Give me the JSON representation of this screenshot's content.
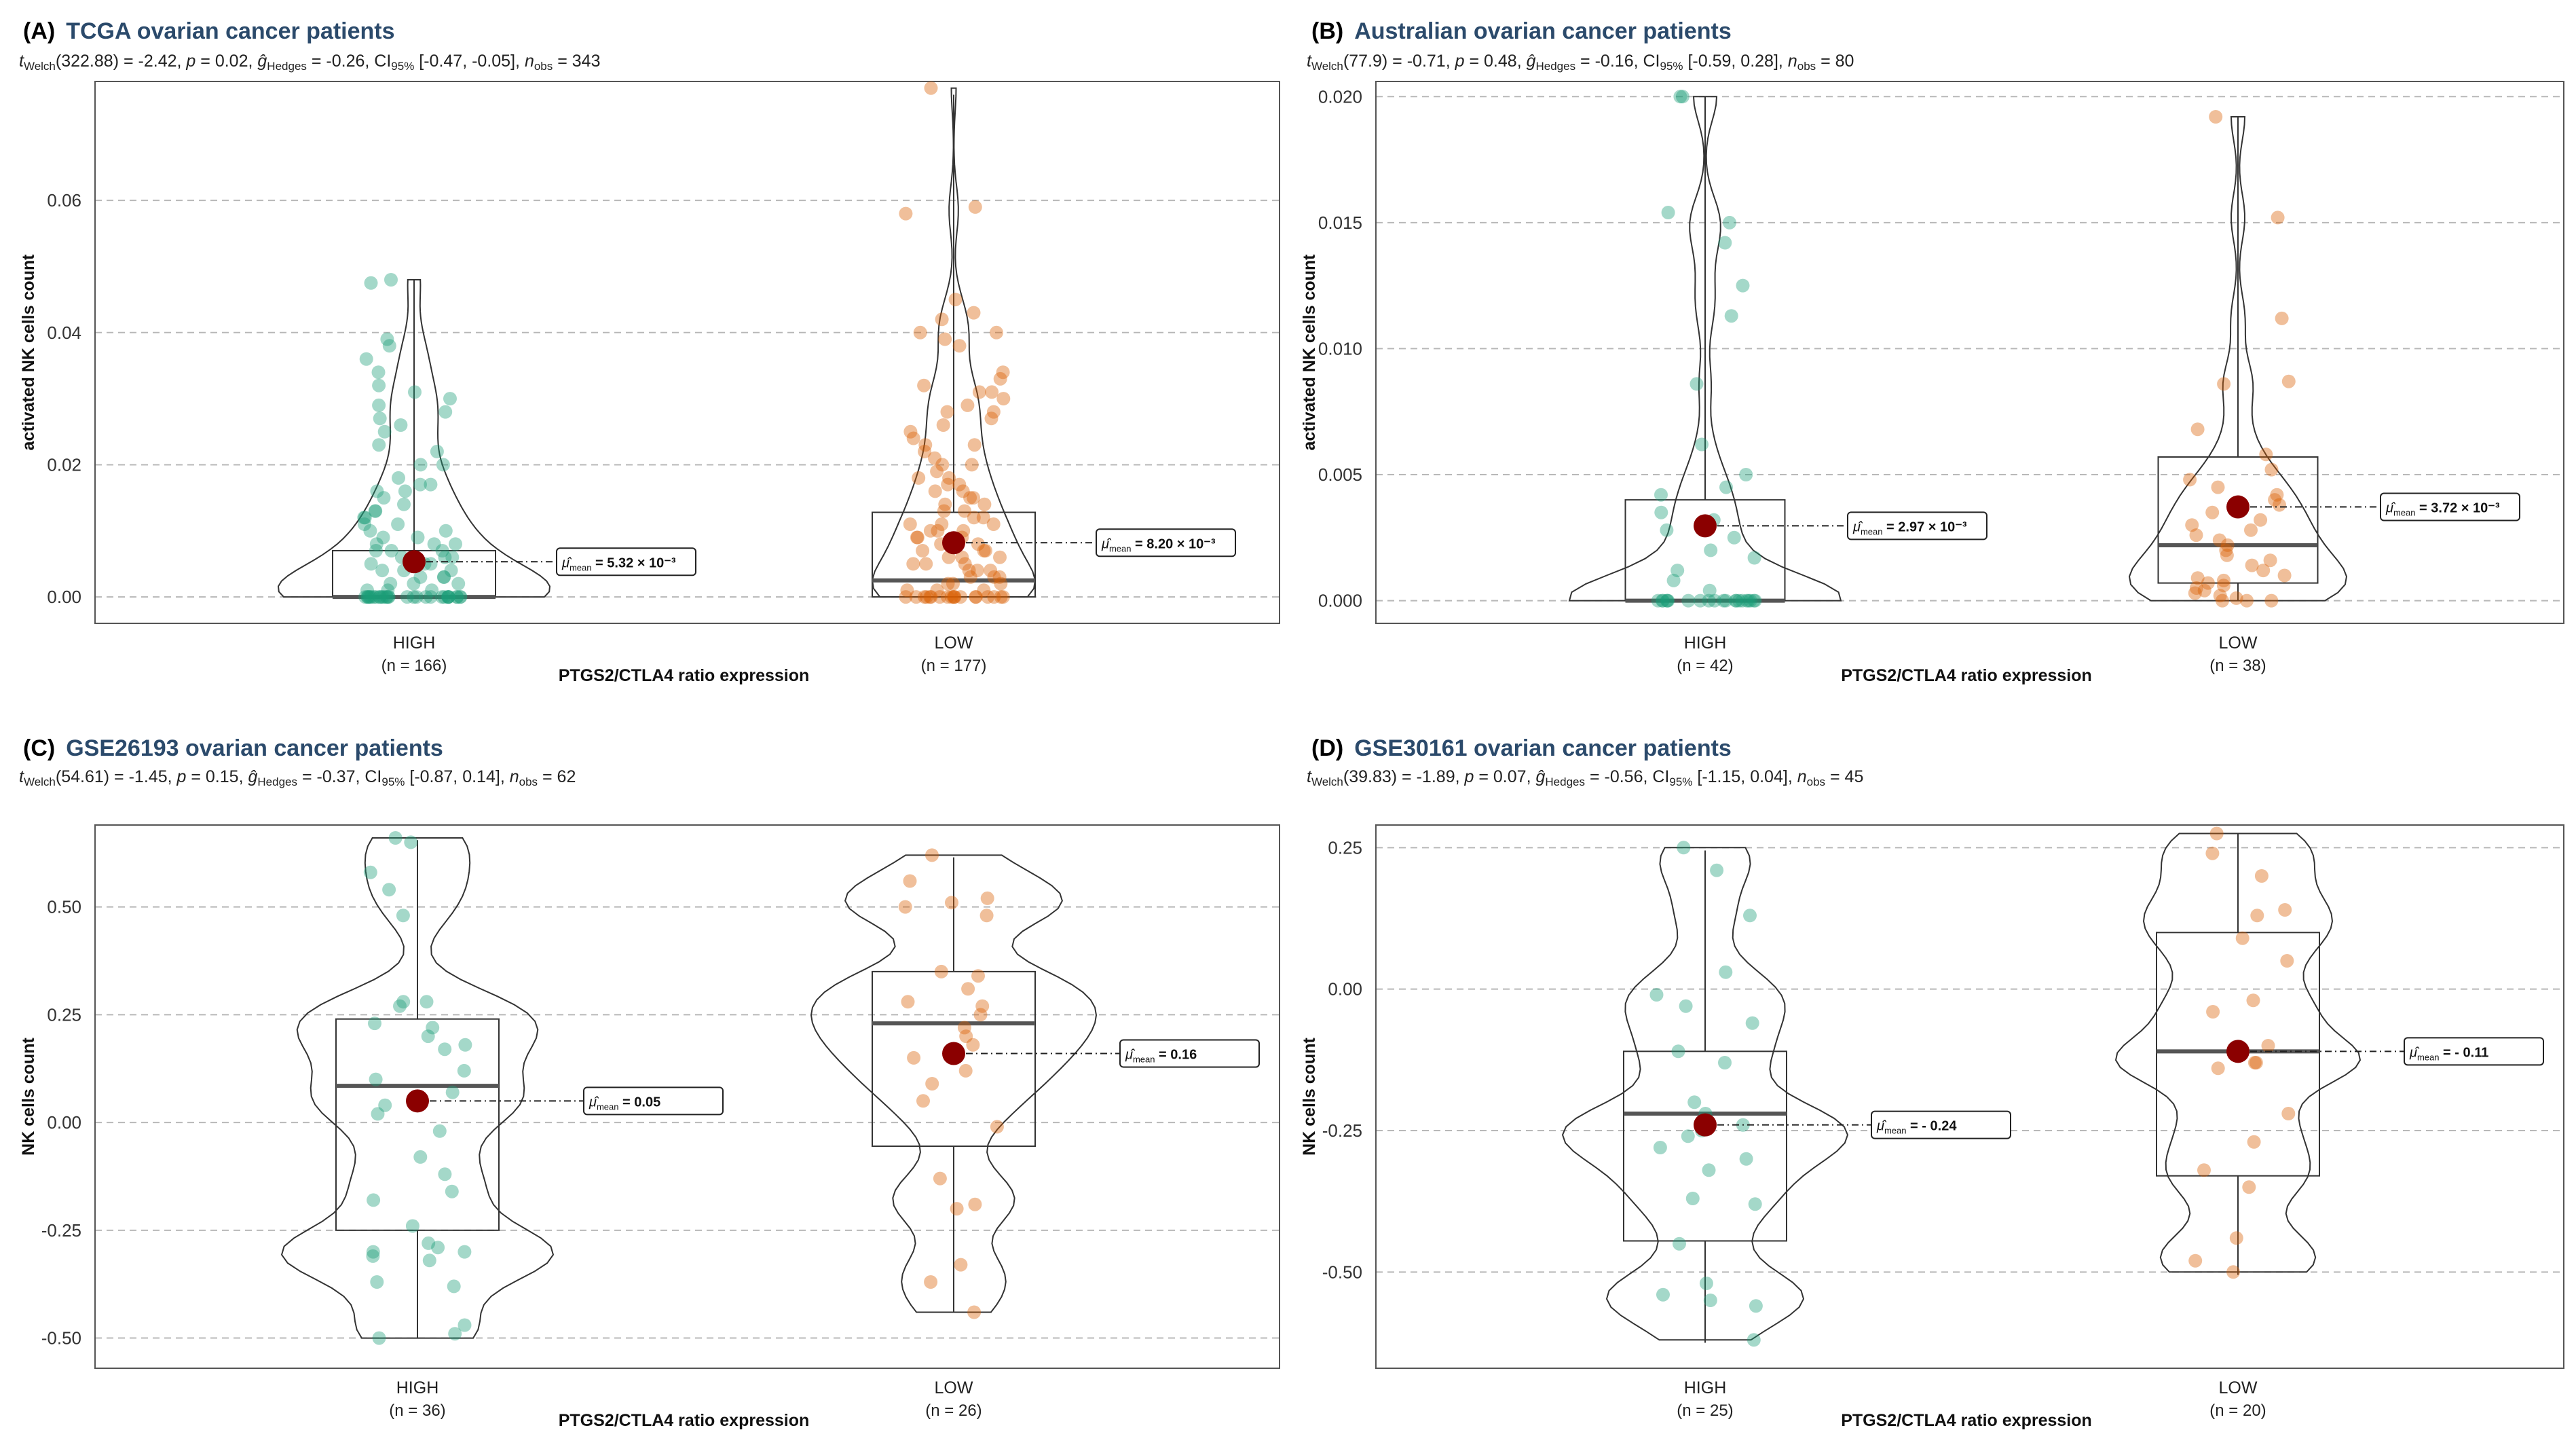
{
  "figure": {
    "group_labels": [
      "HIGH",
      "LOW"
    ],
    "group_colors": [
      "#1b9e77",
      "#d95f02"
    ],
    "mean_marker_color": "#8b0000"
  },
  "chart_data": [
    {
      "panel": "(A)",
      "type": "violin-box-scatter",
      "title": "TCGA ovarian cancer patients",
      "stat": {
        "t_welch_df": "322.88",
        "t": "-2.42",
        "p": "0.02",
        "g_hedges": "-0.26",
        "ci": "[-0.47, -0.05]",
        "n_obs": "343"
      },
      "ylabel": "activated NK cells count",
      "xlabel": "PTGS2/CTLA4 ratio expression",
      "ylim": [
        -0.004,
        0.078
      ],
      "yticks": [
        0.0,
        0.02,
        0.04,
        0.06
      ],
      "ytick_labels": [
        "0.00",
        "0.02",
        "0.04",
        "0.06"
      ],
      "groups": [
        {
          "label": "HIGH",
          "n_label": "(n = 166)",
          "color": "#1b9e77",
          "box": {
            "min": 0.0,
            "q1": 0.0,
            "median": 0.0,
            "q3": 0.007,
            "max": 0.048
          },
          "mean": 0.00532,
          "mean_label": "5.32 × 10⁻³",
          "points": [
            0.048,
            0.0475,
            0.039,
            0.038,
            0.036,
            0.034,
            0.032,
            0.031,
            0.03,
            0.029,
            0.028,
            0.027,
            0.026,
            0.025,
            0.023,
            0.022,
            0.02,
            0.02,
            0.018,
            0.017,
            0.017,
            0.016,
            0.016,
            0.015,
            0.014,
            0.013,
            0.013,
            0.012,
            0.012,
            0.011,
            0.011,
            0.01,
            0.01,
            0.009,
            0.009,
            0.008,
            0.008,
            0.008,
            0.007,
            0.007,
            0.007,
            0.006,
            0.006,
            0.006,
            0.005,
            0.005,
            0.005,
            0.004,
            0.004,
            0.004,
            0.003,
            0.003,
            0.003,
            0.002,
            0.002,
            0.002,
            0.001,
            0.001,
            0.001,
            0.0,
            0.0,
            0.0,
            0.0,
            0.0,
            0.0,
            0.0,
            0.0,
            0.0,
            0.0,
            0.0,
            0.0,
            0.0,
            0.0,
            0.0,
            0.0,
            0.0,
            0.0,
            0.0,
            0.0,
            0.0,
            0.0,
            0.0,
            0.0,
            0.0,
            0.0,
            0.0,
            0.0,
            0.0,
            0.0,
            0.0
          ]
        },
        {
          "label": "LOW",
          "n_label": "(n = 177)",
          "color": "#d95f02",
          "box": {
            "min": 0.0,
            "q1": 0.0,
            "median": 0.0025,
            "q3": 0.0128,
            "max": 0.076
          },
          "mean": 0.0082,
          "mean_label": "8.20 × 10⁻³",
          "points": [
            0.077,
            0.059,
            0.058,
            0.045,
            0.043,
            0.042,
            0.04,
            0.04,
            0.039,
            0.038,
            0.034,
            0.033,
            0.032,
            0.031,
            0.031,
            0.03,
            0.029,
            0.028,
            0.028,
            0.027,
            0.026,
            0.025,
            0.024,
            0.023,
            0.023,
            0.022,
            0.021,
            0.02,
            0.02,
            0.019,
            0.018,
            0.018,
            0.017,
            0.017,
            0.016,
            0.016,
            0.015,
            0.015,
            0.014,
            0.014,
            0.013,
            0.013,
            0.012,
            0.012,
            0.011,
            0.011,
            0.011,
            0.01,
            0.01,
            0.01,
            0.009,
            0.009,
            0.009,
            0.008,
            0.008,
            0.008,
            0.007,
            0.007,
            0.007,
            0.006,
            0.006,
            0.006,
            0.005,
            0.005,
            0.005,
            0.004,
            0.004,
            0.004,
            0.003,
            0.003,
            0.003,
            0.002,
            0.002,
            0.002,
            0.001,
            0.001,
            0.001,
            0.0,
            0.0,
            0.0,
            0.0,
            0.0,
            0.0,
            0.0,
            0.0,
            0.0,
            0.0,
            0.0,
            0.0,
            0.0,
            0.0,
            0.0,
            0.0,
            0.0,
            0.0,
            0.0
          ]
        }
      ]
    },
    {
      "panel": "(B)",
      "type": "violin-box-scatter",
      "title": "Australian ovarian cancer patients",
      "stat": {
        "t_welch_df": "77.9",
        "t": "-0.71",
        "p": "0.48",
        "g_hedges": "-0.16",
        "ci": "[-0.59, 0.28]",
        "n_obs": "80"
      },
      "ylabel": "activated NK cells count",
      "xlabel": "PTGS2/CTLA4 ratio expression",
      "ylim": [
        -0.0009,
        0.0206
      ],
      "yticks": [
        0.0,
        0.005,
        0.01,
        0.015,
        0.02
      ],
      "ytick_labels": [
        "0.000",
        "0.005",
        "0.010",
        "0.015",
        "0.020"
      ],
      "groups": [
        {
          "label": "HIGH",
          "n_label": "(n = 42)",
          "color": "#1b9e77",
          "box": {
            "min": 0.0,
            "q1": 0.0,
            "median": 0.0,
            "q3": 0.004,
            "max": 0.02
          },
          "mean": 0.00297,
          "mean_label": "2.97 × 10⁻³",
          "points": [
            0.02,
            0.02,
            0.0154,
            0.015,
            0.0142,
            0.0125,
            0.0113,
            0.0086,
            0.0062,
            0.005,
            0.0045,
            0.0042,
            0.0035,
            0.0032,
            0.0028,
            0.0025,
            0.002,
            0.0017,
            0.0012,
            0.0008,
            0.0004,
            0.0,
            0.0,
            0.0,
            0.0,
            0.0,
            0.0,
            0.0,
            0.0,
            0.0,
            0.0,
            0.0,
            0.0,
            0.0,
            0.0,
            0.0,
            0.0,
            0.0,
            0.0,
            0.0,
            0.0,
            0.0
          ]
        },
        {
          "label": "LOW",
          "n_label": "(n = 38)",
          "color": "#d95f02",
          "box": {
            "min": 0.0,
            "q1": 0.0007,
            "median": 0.0022,
            "q3": 0.0057,
            "max": 0.0192
          },
          "mean": 0.00372,
          "mean_label": "3.72 × 10⁻³",
          "points": [
            0.0192,
            0.0152,
            0.0112,
            0.0087,
            0.0086,
            0.0068,
            0.0058,
            0.0052,
            0.0048,
            0.0045,
            0.0042,
            0.004,
            0.0038,
            0.0035,
            0.0032,
            0.003,
            0.0028,
            0.0026,
            0.0024,
            0.0022,
            0.002,
            0.0018,
            0.0016,
            0.0014,
            0.0012,
            0.001,
            0.0009,
            0.0008,
            0.0007,
            0.0006,
            0.0005,
            0.0004,
            0.0003,
            0.0002,
            0.0001,
            0.0,
            0.0,
            0.0
          ]
        }
      ]
    },
    {
      "panel": "(C)",
      "type": "violin-box-scatter",
      "title": "GSE26193 ovarian cancer patients",
      "stat": {
        "t_welch_df": "54.61",
        "t": "-1.45",
        "p": "0.15",
        "g_hedges": "-0.37",
        "ci": "[-0.87, 0.14]",
        "n_obs": "62"
      },
      "ylabel": "NK cells count",
      "xlabel": "PTGS2/CTLA4 ratio expression",
      "ylim": [
        -0.57,
        0.69
      ],
      "yticks": [
        -0.5,
        -0.25,
        0.0,
        0.25,
        0.5
      ],
      "ytick_labels": [
        "-0.50",
        "-0.25",
        "0.00",
        "0.25",
        "0.50"
      ],
      "groups": [
        {
          "label": "HIGH",
          "n_label": "(n = 36)",
          "color": "#1b9e77",
          "box": {
            "min": -0.5,
            "q1": -0.25,
            "median": 0.085,
            "q3": 0.24,
            "max": 0.655
          },
          "mean": 0.05,
          "mean_label": "0.05",
          "points": [
            0.66,
            0.65,
            0.58,
            0.54,
            0.48,
            0.28,
            0.28,
            0.27,
            0.23,
            0.22,
            0.2,
            0.18,
            0.17,
            0.12,
            0.1,
            0.07,
            0.05,
            0.04,
            0.02,
            -0.02,
            -0.08,
            -0.12,
            -0.16,
            -0.18,
            -0.24,
            -0.28,
            -0.29,
            -0.3,
            -0.3,
            -0.31,
            -0.32,
            -0.37,
            -0.38,
            -0.47,
            -0.49,
            -0.5
          ]
        },
        {
          "label": "LOW",
          "n_label": "(n = 26)",
          "color": "#d95f02",
          "box": {
            "min": -0.44,
            "q1": -0.055,
            "median": 0.23,
            "q3": 0.35,
            "max": 0.615
          },
          "mean": 0.16,
          "mean_label": "0.16",
          "points": [
            0.62,
            0.56,
            0.52,
            0.51,
            0.5,
            0.48,
            0.35,
            0.34,
            0.31,
            0.28,
            0.27,
            0.25,
            0.22,
            0.2,
            0.18,
            0.15,
            0.12,
            0.09,
            0.05,
            -0.01,
            -0.13,
            -0.19,
            -0.2,
            -0.33,
            -0.37,
            -0.44
          ]
        }
      ]
    },
    {
      "panel": "(D)",
      "type": "violin-box-scatter",
      "title": "GSE30161 ovarian cancer patients",
      "stat": {
        "t_welch_df": "39.83",
        "t": "-1.89",
        "p": "0.07",
        "g_hedges": "-0.56",
        "ci": "[-1.15, 0.04]",
        "n_obs": "45"
      },
      "ylabel": "NK cells count",
      "xlabel": "PTGS2/CTLA4 ratio expression",
      "ylim": [
        -0.67,
        0.29
      ],
      "yticks": [
        -0.5,
        -0.25,
        0.0,
        0.25
      ],
      "ytick_labels": [
        "-0.50",
        "-0.25",
        "0.00",
        "0.25"
      ],
      "groups": [
        {
          "label": "HIGH",
          "n_label": "(n = 25)",
          "color": "#1b9e77",
          "box": {
            "min": -0.625,
            "q1": -0.445,
            "median": -0.22,
            "q3": -0.11,
            "max": 0.245
          },
          "mean": -0.24,
          "mean_label": "- 0.24",
          "points": [
            0.25,
            0.21,
            0.13,
            0.03,
            -0.01,
            -0.03,
            -0.06,
            -0.11,
            -0.13,
            -0.2,
            -0.22,
            -0.24,
            -0.25,
            -0.26,
            -0.28,
            -0.3,
            -0.32,
            -0.37,
            -0.38,
            -0.45,
            -0.52,
            -0.54,
            -0.55,
            -0.56,
            -0.62
          ]
        },
        {
          "label": "LOW",
          "n_label": "(n = 20)",
          "color": "#d95f02",
          "box": {
            "min": -0.505,
            "q1": -0.33,
            "median": -0.11,
            "q3": 0.1,
            "max": 0.275
          },
          "mean": -0.11,
          "mean_label": "- 0.11",
          "points": [
            0.275,
            0.24,
            0.2,
            0.14,
            0.13,
            0.09,
            0.05,
            -0.02,
            -0.04,
            -0.1,
            -0.13,
            -0.13,
            -0.14,
            -0.22,
            -0.27,
            -0.32,
            -0.35,
            -0.44,
            -0.48,
            -0.5
          ]
        }
      ]
    }
  ]
}
